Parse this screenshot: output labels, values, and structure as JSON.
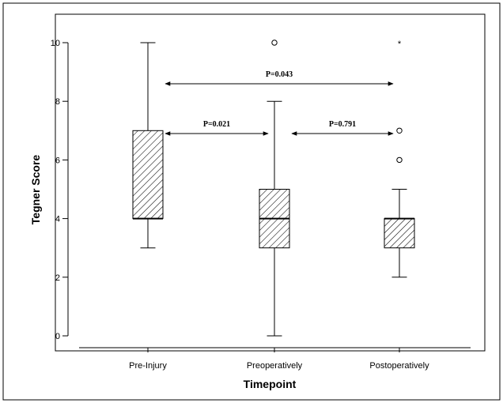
{
  "chart_data": {
    "type": "box",
    "xlabel": "Timepoint",
    "ylabel": "Tegner Score",
    "ylim": [
      0,
      10
    ],
    "yticks": [
      "0",
      "2",
      "4",
      "6",
      "8",
      "10"
    ],
    "ytick_values": [
      0,
      2,
      4,
      6,
      8,
      10
    ],
    "categories": [
      "Pre-Injury",
      "Preoperatively",
      "Postoperatively"
    ],
    "boxes": [
      {
        "category": "Pre-Injury",
        "min": 3,
        "q1": 4,
        "median": 4,
        "q3": 7,
        "max": 10,
        "outliers": [],
        "extremes": []
      },
      {
        "category": "Preoperatively",
        "min": 0,
        "q1": 3,
        "median": 4,
        "q3": 5,
        "max": 8,
        "outliers": [
          10
        ],
        "extremes": []
      },
      {
        "category": "Postoperatively",
        "min": 2,
        "q1": 3,
        "median": 4,
        "q3": 4,
        "max": 5,
        "outliers": [
          6,
          7
        ],
        "extremes": [
          10
        ]
      }
    ],
    "comparisons": [
      {
        "from": "Pre-Injury",
        "to": "Postoperatively",
        "label": "P=0.043",
        "y": 8.6
      },
      {
        "from": "Pre-Injury",
        "to": "Preoperatively",
        "label": "P=0.021",
        "y": 6.9
      },
      {
        "from": "Preoperatively",
        "to": "Postoperatively",
        "label": "P=0.791",
        "y": 6.9
      }
    ],
    "box_fill": "hatched",
    "grid": false,
    "legend": "none"
  }
}
